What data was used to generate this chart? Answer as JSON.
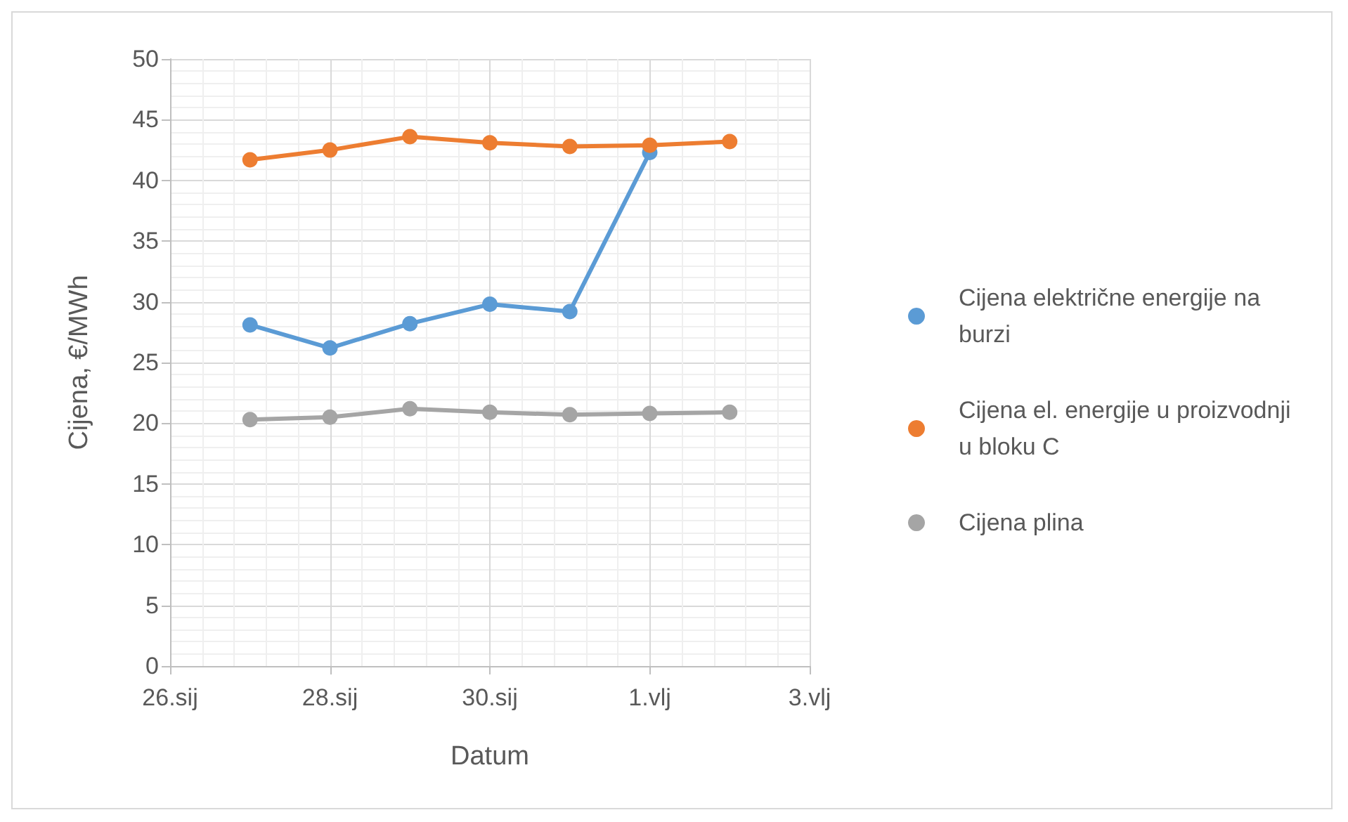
{
  "chart_data": {
    "type": "line",
    "xlabel": "Datum",
    "ylabel": "Cijena, €/MWh",
    "x": [
      "--01-27",
      "--01-28",
      "--01-29",
      "--01-30",
      "--01-31",
      "--02-01",
      "--02-02"
    ],
    "series": [
      {
        "name": "Cijena električne energije na burzi",
        "color": "#5b9bd5",
        "values": [
          28.1,
          26.2,
          28.2,
          29.8,
          29.2,
          42.3,
          null
        ]
      },
      {
        "name": "Cijena el. energije u proizvodnji u bloku C",
        "color": "#ed7d31",
        "values": [
          41.7,
          42.5,
          43.6,
          43.1,
          42.8,
          42.9,
          43.2
        ]
      },
      {
        "name": "Cijena plina",
        "color": "#a5a5a5",
        "values": [
          20.3,
          20.5,
          21.2,
          20.9,
          20.7,
          20.8,
          20.9
        ]
      }
    ],
    "xlim": [
      "--01-26",
      "--02-03"
    ],
    "xticks": [
      {
        "value": "--01-26",
        "label": "26.sij"
      },
      {
        "value": "--01-28",
        "label": "28.sij"
      },
      {
        "value": "--01-30",
        "label": "30.sij"
      },
      {
        "value": "--02-01",
        "label": "1.vlj"
      },
      {
        "value": "--02-03",
        "label": "3.vlj"
      }
    ],
    "ylim": [
      0,
      50
    ],
    "yticks": [
      0,
      5,
      10,
      15,
      20,
      25,
      30,
      35,
      40,
      45,
      50
    ],
    "grid": true,
    "legend": "right",
    "marker": "circle",
    "line_style": "solid"
  }
}
